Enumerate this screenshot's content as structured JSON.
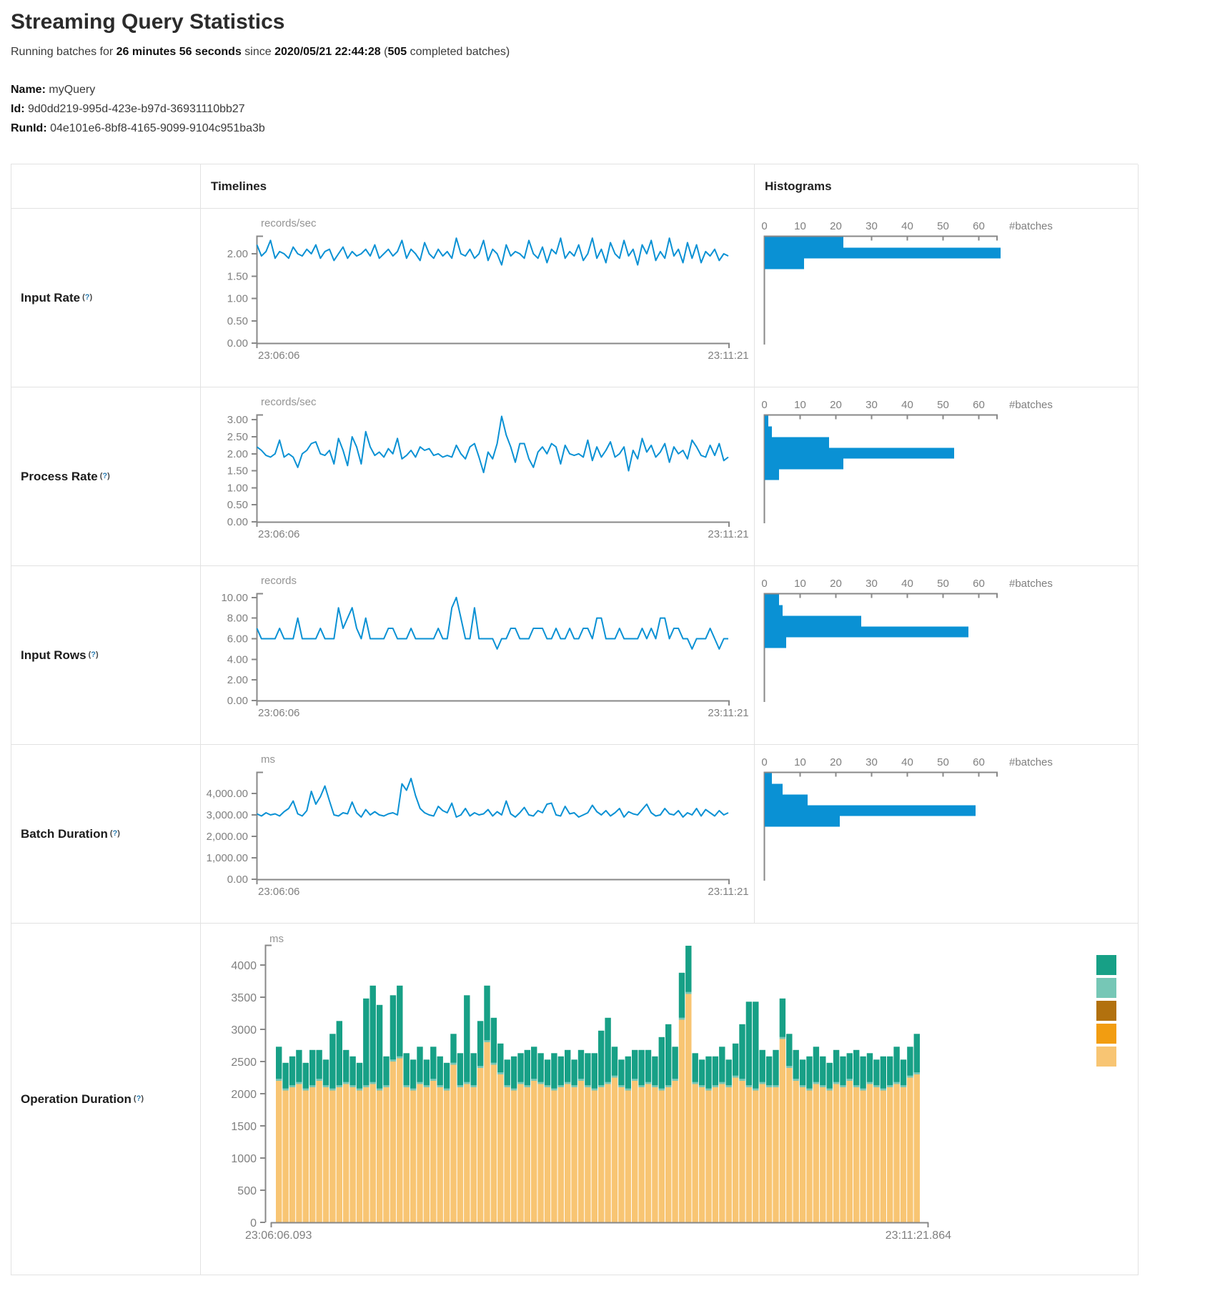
{
  "header": {
    "title": "Streaming Query Statistics",
    "running_prefix": "Running batches for ",
    "duration": "26 minutes 56 seconds",
    "since_word": " since ",
    "start_time": "2020/05/21 22:44:28",
    "paren_open": " (",
    "completed_batches": "505",
    "completed_suffix": " completed batches)"
  },
  "query_info": {
    "name_label": "Name:",
    "name_value": "myQuery",
    "id_label": "Id:",
    "id_value": "9d0dd219-995d-423e-b97d-36931110bb27",
    "runid_label": "RunId:",
    "runid_value": "04e101e6-8bf8-4165-9099-9104c951ba3b"
  },
  "table": {
    "timelines_header": "Timelines",
    "histograms_header": "Histograms",
    "rows": [
      {
        "label": "Input Rate",
        "help": {
          "o": "(",
          "q": "?",
          "c": ")"
        }
      },
      {
        "label": "Process Rate",
        "help": {
          "o": "(",
          "q": "?",
          "c": ")"
        }
      },
      {
        "label": "Input Rows",
        "help": {
          "o": "(",
          "q": "?",
          "c": ")"
        }
      },
      {
        "label": "Batch Duration",
        "help": {
          "o": "(",
          "q": "?",
          "c": ")"
        }
      },
      {
        "label": "Operation Duration",
        "help": {
          "o": "(",
          "q": "?",
          "c": ")"
        }
      }
    ]
  },
  "colors": {
    "blue": "#0a91d4",
    "axis": "#888888",
    "teal": "#17a086",
    "light_teal": "#76c7b6",
    "brown": "#b2710e",
    "orange": "#f29d11",
    "light_orange": "#f8c573"
  },
  "chart_data": {
    "input_rate": {
      "timeline": {
        "type": "line",
        "unit": "records/sec",
        "x_start": "23:06:06",
        "x_end": "23:11:21",
        "ylim": [
          0,
          2.4
        ],
        "yticks": [
          [
            "2.00",
            2
          ],
          [
            "1.50",
            1.5
          ],
          [
            "1.00",
            1
          ],
          [
            "0.50",
            0.5
          ],
          [
            "0.00",
            0
          ]
        ],
        "values": [
          2.2,
          1.95,
          2.05,
          2.3,
          1.9,
          2.05,
          2.0,
          1.9,
          2.15,
          2.0,
          1.95,
          2.1,
          2.0,
          2.2,
          1.9,
          2.05,
          2.1,
          1.85,
          2.0,
          2.15,
          1.9,
          2.05,
          1.95,
          2.0,
          2.1,
          1.95,
          2.2,
          1.9,
          2.0,
          2.1,
          1.95,
          2.05,
          2.3,
          1.9,
          2.1,
          2.0,
          1.85,
          2.25,
          2.0,
          1.9,
          2.1,
          1.95,
          2.05,
          1.9,
          2.35,
          2.0,
          1.95,
          2.1,
          1.9,
          2.0,
          2.3,
          1.85,
          2.1,
          2.0,
          1.75,
          2.2,
          1.95,
          2.05,
          2.0,
          1.9,
          2.3,
          2.0,
          1.9,
          2.15,
          1.8,
          2.1,
          2.0,
          2.35,
          1.9,
          2.05,
          1.95,
          2.2,
          1.85,
          2.0,
          2.35,
          1.9,
          2.1,
          1.8,
          2.25,
          2.0,
          1.9,
          2.3,
          1.95,
          2.1,
          1.75,
          2.2,
          2.0,
          2.3,
          1.85,
          2.05,
          1.9,
          2.35,
          1.95,
          2.1,
          1.8,
          2.25,
          1.9,
          2.2,
          1.8,
          2.05,
          1.95,
          2.1,
          1.85,
          2.0,
          1.95
        ]
      },
      "histogram": {
        "type": "bar",
        "orientation": "horizontal",
        "xlabel": "#batches",
        "xticks": [
          0,
          10,
          20,
          30,
          40,
          50,
          60
        ],
        "xlim": [
          0,
          66
        ],
        "values": [
          22,
          66,
          11
        ]
      }
    },
    "process_rate": {
      "timeline": {
        "type": "line",
        "unit": "records/sec",
        "x_start": "23:06:06",
        "x_end": "23:11:21",
        "ylim": [
          0,
          3.15
        ],
        "yticks": [
          [
            "3.00",
            3
          ],
          [
            "2.50",
            2.5
          ],
          [
            "2.00",
            2
          ],
          [
            "1.50",
            1.5
          ],
          [
            "1.00",
            1
          ],
          [
            "0.50",
            0.5
          ],
          [
            "0.00",
            0
          ]
        ],
        "values": [
          2.2,
          2.1,
          1.95,
          1.9,
          2.0,
          2.4,
          1.9,
          2.0,
          1.9,
          1.6,
          2.0,
          2.1,
          2.3,
          2.35,
          2.0,
          1.95,
          2.1,
          1.7,
          2.45,
          2.1,
          1.65,
          2.5,
          2.2,
          1.7,
          2.65,
          2.2,
          1.95,
          2.05,
          1.9,
          2.15,
          2.0,
          2.45,
          1.85,
          1.95,
          2.1,
          1.9,
          2.2,
          2.1,
          2.15,
          1.95,
          2.0,
          1.9,
          1.95,
          1.9,
          2.25,
          2.0,
          1.85,
          2.2,
          2.3,
          1.9,
          1.45,
          2.05,
          1.85,
          2.3,
          3.1,
          2.55,
          2.2,
          1.75,
          2.3,
          2.3,
          1.85,
          1.6,
          2.05,
          2.2,
          2.0,
          2.3,
          2.2,
          1.7,
          2.25,
          2.0,
          1.95,
          2.0,
          1.9,
          2.4,
          1.8,
          2.2,
          1.9,
          2.1,
          2.35,
          1.9,
          2.0,
          2.2,
          1.5,
          2.1,
          1.85,
          2.45,
          2.05,
          2.25,
          1.9,
          2.05,
          2.3,
          1.75,
          2.2,
          2.0,
          2.1,
          1.85,
          2.4,
          2.2,
          1.95,
          1.9,
          2.25,
          1.95,
          2.3,
          1.8,
          1.9
        ]
      },
      "histogram": {
        "type": "bar",
        "orientation": "horizontal",
        "xlabel": "#batches",
        "xticks": [
          0,
          10,
          20,
          30,
          40,
          50,
          60
        ],
        "xlim": [
          0,
          66
        ],
        "values": [
          1,
          2,
          18,
          53,
          22,
          4
        ]
      }
    },
    "input_rows": {
      "timeline": {
        "type": "line",
        "unit": "records",
        "x_start": "23:06:06",
        "x_end": "23:11:21",
        "ylim": [
          0,
          10.4
        ],
        "yticks": [
          [
            "10.00",
            10
          ],
          [
            "8.00",
            8
          ],
          [
            "6.00",
            6
          ],
          [
            "4.00",
            4
          ],
          [
            "2.00",
            2
          ],
          [
            "0.00",
            0
          ]
        ],
        "values": [
          7,
          6,
          6,
          6,
          6,
          7,
          6,
          6,
          6,
          8,
          6,
          6,
          6,
          6,
          7,
          6,
          6,
          6,
          9,
          7,
          8,
          9,
          7,
          6,
          8,
          6,
          6,
          6,
          6,
          7,
          7,
          6,
          6,
          6,
          7,
          6,
          6,
          6,
          6,
          6,
          7,
          6,
          6,
          9,
          10,
          8,
          6,
          6,
          9,
          6,
          6,
          6,
          6,
          5,
          6,
          6,
          7,
          7,
          6,
          6,
          6,
          7,
          7,
          7,
          6,
          6,
          7,
          6,
          6,
          7,
          6,
          6,
          7,
          7,
          6,
          8,
          8,
          6,
          6,
          6,
          7,
          6,
          6,
          6,
          6,
          7,
          6,
          7,
          6,
          8,
          8,
          6,
          7,
          7,
          6,
          6,
          5,
          6,
          6,
          6,
          7,
          6,
          5,
          6,
          6
        ]
      },
      "histogram": {
        "type": "bar",
        "orientation": "horizontal",
        "xlabel": "#batches",
        "xticks": [
          0,
          10,
          20,
          30,
          40,
          50,
          60
        ],
        "xlim": [
          0,
          66
        ],
        "values": [
          4,
          5,
          27,
          57,
          6
        ]
      }
    },
    "batch_duration": {
      "timeline": {
        "type": "line",
        "unit": "ms",
        "x_start": "23:06:06",
        "x_end": "23:11:21",
        "ylim": [
          0,
          5000
        ],
        "yticks": [
          [
            "4,000.00",
            4000
          ],
          [
            "3,000.00",
            3000
          ],
          [
            "2,000.00",
            2000
          ],
          [
            "1,000.00",
            1000
          ],
          [
            "0.00",
            0
          ]
        ],
        "values": [
          3050,
          2950,
          3100,
          3000,
          3050,
          2950,
          3150,
          3300,
          3650,
          3050,
          2950,
          3200,
          4100,
          3500,
          3850,
          4350,
          3650,
          3000,
          2950,
          3100,
          3050,
          3600,
          3100,
          2900,
          3250,
          3000,
          3150,
          3000,
          2950,
          3050,
          3100,
          3000,
          4450,
          4150,
          4700,
          3900,
          3300,
          3100,
          3000,
          2950,
          3400,
          3200,
          3100,
          3550,
          2900,
          3000,
          3300,
          2950,
          3100,
          3000,
          3050,
          3250,
          2950,
          3150,
          3000,
          3650,
          3050,
          2900,
          3100,
          3350,
          3000,
          2950,
          3200,
          3100,
          3500,
          3550,
          3000,
          2950,
          3400,
          3050,
          3100,
          2900,
          3000,
          3100,
          3450,
          3150,
          3000,
          3200,
          2950,
          3100,
          3300,
          2900,
          3150,
          3050,
          3000,
          3250,
          3500,
          3100,
          2950,
          3000,
          3300,
          3050,
          3000,
          3200,
          2900,
          3100,
          3000,
          3300,
          2950,
          3250,
          3100,
          2950,
          3200,
          3000,
          3100
        ]
      },
      "histogram": {
        "type": "bar",
        "orientation": "horizontal",
        "xlabel": "#batches",
        "xticks": [
          0,
          10,
          20,
          30,
          40,
          50,
          60
        ],
        "xlim": [
          0,
          66
        ],
        "values": [
          2,
          5,
          12,
          59,
          21
        ]
      }
    },
    "operation_duration": {
      "timeline": {
        "type": "stacked-bar",
        "unit": "ms",
        "x_start": "23:06:06.093",
        "x_end": "23:11:21.864",
        "ylim": [
          0,
          4400
        ],
        "yticks": [
          [
            "4000",
            4000
          ],
          [
            "3500",
            3500
          ],
          [
            "3000",
            3000
          ],
          [
            "2500",
            2500
          ],
          [
            "2000",
            2000
          ],
          [
            "1500",
            1500
          ],
          [
            "1000",
            1000
          ],
          [
            "500",
            500
          ],
          [
            "0",
            0
          ]
        ],
        "series": [
          {
            "name": "top-segment",
            "color": "#17a086",
            "values": [
              500,
              400,
              450,
              500,
              400,
              550,
              450,
              400,
              850,
              1000,
              500,
              450,
              400,
              1350,
              1500,
              1300,
              450,
              1000,
              1100,
              500,
              450,
              550,
              400,
              500,
              450,
              400,
              450,
              500,
              1350,
              500,
              700,
              850,
              700,
              450,
              400,
              500,
              450,
              550,
              500,
              450,
              400,
              550,
              450,
              500,
              400,
              450,
              500,
              550,
              850,
              1000,
              450,
              400,
              500,
              450,
              550,
              500,
              450,
              800,
              950,
              500,
              700,
              720,
              450,
              400,
              500,
              450,
              550,
              400,
              500,
              850,
              1300,
              1350,
              500,
              450,
              550,
              600,
              500,
              450,
              400,
              500,
              550,
              450,
              400,
              500,
              450,
              400,
              550,
              500,
              450,
              400,
              500,
              450,
              550,
              400,
              450,
              600
            ]
          },
          {
            "name": "middle-segment",
            "color": "#76c7b6",
            "constant": 30
          },
          {
            "name": "base-segment",
            "color": "#f8c573",
            "values": [
              2200,
              2050,
              2100,
              2150,
              2050,
              2100,
              2200,
              2100,
              2050,
              2100,
              2150,
              2100,
              2050,
              2100,
              2150,
              2050,
              2100,
              2500,
              2550,
              2100,
              2050,
              2150,
              2100,
              2200,
              2100,
              2050,
              2450,
              2100,
              2150,
              2100,
              2400,
              2800,
              2450,
              2300,
              2100,
              2050,
              2150,
              2100,
              2200,
              2150,
              2100,
              2050,
              2100,
              2150,
              2100,
              2200,
              2100,
              2050,
              2100,
              2150,
              2250,
              2100,
              2050,
              2200,
              2100,
              2150,
              2100,
              2050,
              2100,
              2200,
              3150,
              3550,
              2150,
              2100,
              2050,
              2100,
              2150,
              2100,
              2250,
              2200,
              2100,
              2050,
              2150,
              2100,
              2100,
              2850,
              2400,
              2200,
              2100,
              2050,
              2150,
              2100,
              2050,
              2150,
              2100,
              2200,
              2100,
              2050,
              2150,
              2100,
              2050,
              2100,
              2150,
              2100,
              2250,
              2300
            ]
          }
        ]
      },
      "legend": {
        "colors": [
          "#17a086",
          "#76c7b6",
          "#b2710e",
          "#f29d11",
          "#f8c573"
        ]
      }
    }
  }
}
